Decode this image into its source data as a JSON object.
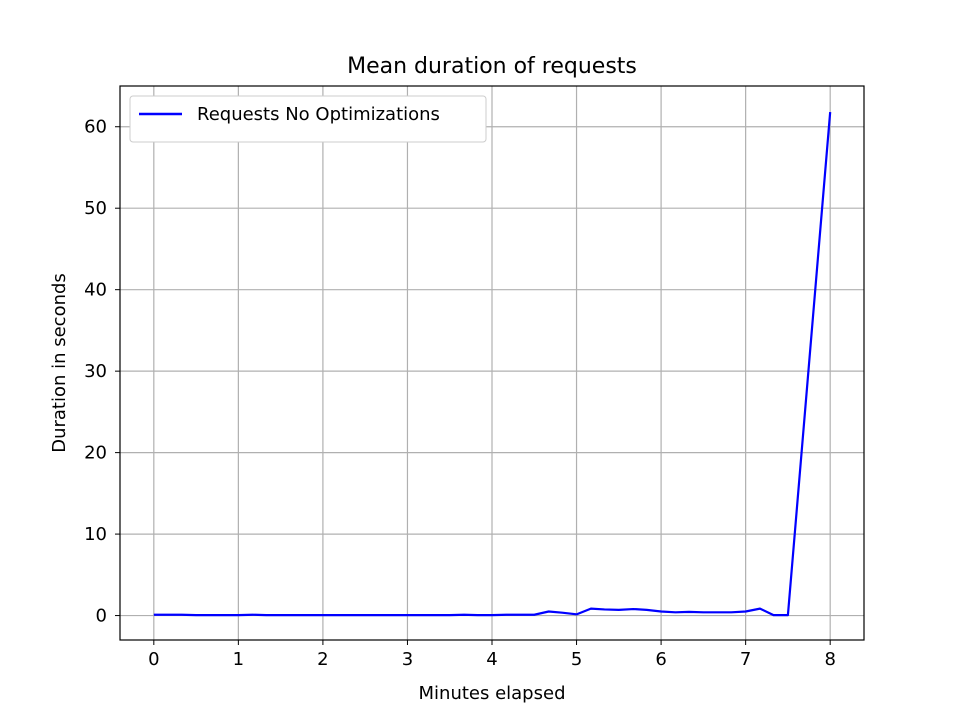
{
  "chart_data": {
    "type": "line",
    "title": "Mean duration of requests",
    "xlabel": "Minutes elapsed",
    "ylabel": "Duration in seconds",
    "xlim": [
      -0.4,
      8.4
    ],
    "ylim": [
      -3,
      65
    ],
    "xticks": [
      0,
      1,
      2,
      3,
      4,
      5,
      6,
      7,
      8
    ],
    "yticks": [
      0,
      10,
      20,
      30,
      40,
      50,
      60
    ],
    "grid": true,
    "legend_position": "upper-left",
    "series": [
      {
        "name": "Requests No Optimizations",
        "color": "#0000ff",
        "x": [
          0,
          0.17,
          0.33,
          0.5,
          0.67,
          0.83,
          1.0,
          1.17,
          1.33,
          1.5,
          1.67,
          1.83,
          2.0,
          2.17,
          2.33,
          2.5,
          2.67,
          2.83,
          3.0,
          3.17,
          3.33,
          3.5,
          3.67,
          3.83,
          4.0,
          4.17,
          4.33,
          4.5,
          4.67,
          4.83,
          5.0,
          5.17,
          5.33,
          5.5,
          5.67,
          5.83,
          6.0,
          6.17,
          6.33,
          6.5,
          6.67,
          6.83,
          7.0,
          7.17,
          7.33,
          7.5,
          8.0
        ],
        "y": [
          0.1,
          0.1,
          0.1,
          0.05,
          0.05,
          0.05,
          0.05,
          0.1,
          0.05,
          0.05,
          0.05,
          0.05,
          0.05,
          0.05,
          0.05,
          0.05,
          0.05,
          0.05,
          0.05,
          0.05,
          0.05,
          0.05,
          0.1,
          0.05,
          0.05,
          0.1,
          0.1,
          0.1,
          0.5,
          0.35,
          0.15,
          0.85,
          0.75,
          0.7,
          0.8,
          0.7,
          0.5,
          0.4,
          0.45,
          0.4,
          0.4,
          0.4,
          0.5,
          0.85,
          0.05,
          0.05,
          61.8
        ]
      }
    ]
  }
}
